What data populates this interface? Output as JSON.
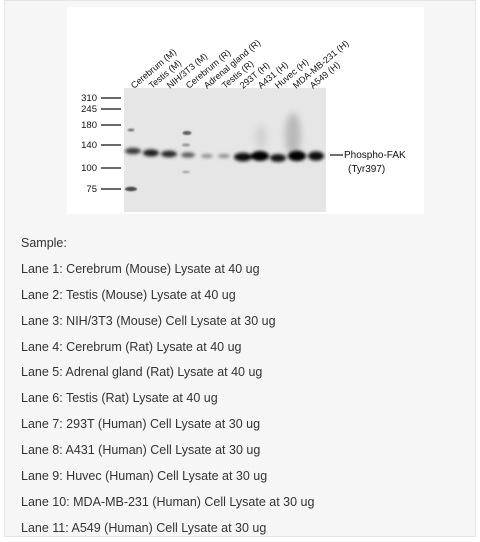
{
  "figure": {
    "lane_labels": [
      "Cerebrum (M)",
      "Testis (M)",
      "NIH/3T3 (M)",
      "Cerebrum (R)",
      "Adrenal gland (R)",
      "Testis (R)",
      "293T (H)",
      "A431 (H)",
      "Huvec (H)",
      "MDA-MB-231 (H)",
      "A549 (H)"
    ],
    "markers": [
      "310",
      "245",
      "180",
      "140",
      "100",
      "75"
    ],
    "target_label_line1": "Phospho-FAK",
    "target_label_line2": "(Tyr397)"
  },
  "caption": {
    "heading": "Sample:",
    "lanes": [
      "Lane 1: Cerebrum (Mouse) Lysate at 40 ug",
      "Lane 2: Testis (Mouse) Lysate at 40 ug",
      "Lane 3: NIH/3T3 (Mouse) Cell Lysate at 30 ug",
      "Lane 4: Cerebrum (Rat) Lysate at 40 ug",
      "Lane 5: Adrenal gland (Rat) Lysate at 40 ug",
      "Lane 6: Testis (Rat) Lysate at 40 ug",
      "Lane 7: 293T (Human) Cell Lysate at 30 ug",
      "Lane 8: A431 (Human) Cell Lysate at 30 ug",
      "Lane 9: Huvec (Human) Cell Lysate at 30 ug",
      "Lane 10: MDA-MB-231 (Human) Cell Lysate at 30 ug",
      "Lane 11: A549 (Human) Cell Lysate at 30 ug"
    ]
  }
}
